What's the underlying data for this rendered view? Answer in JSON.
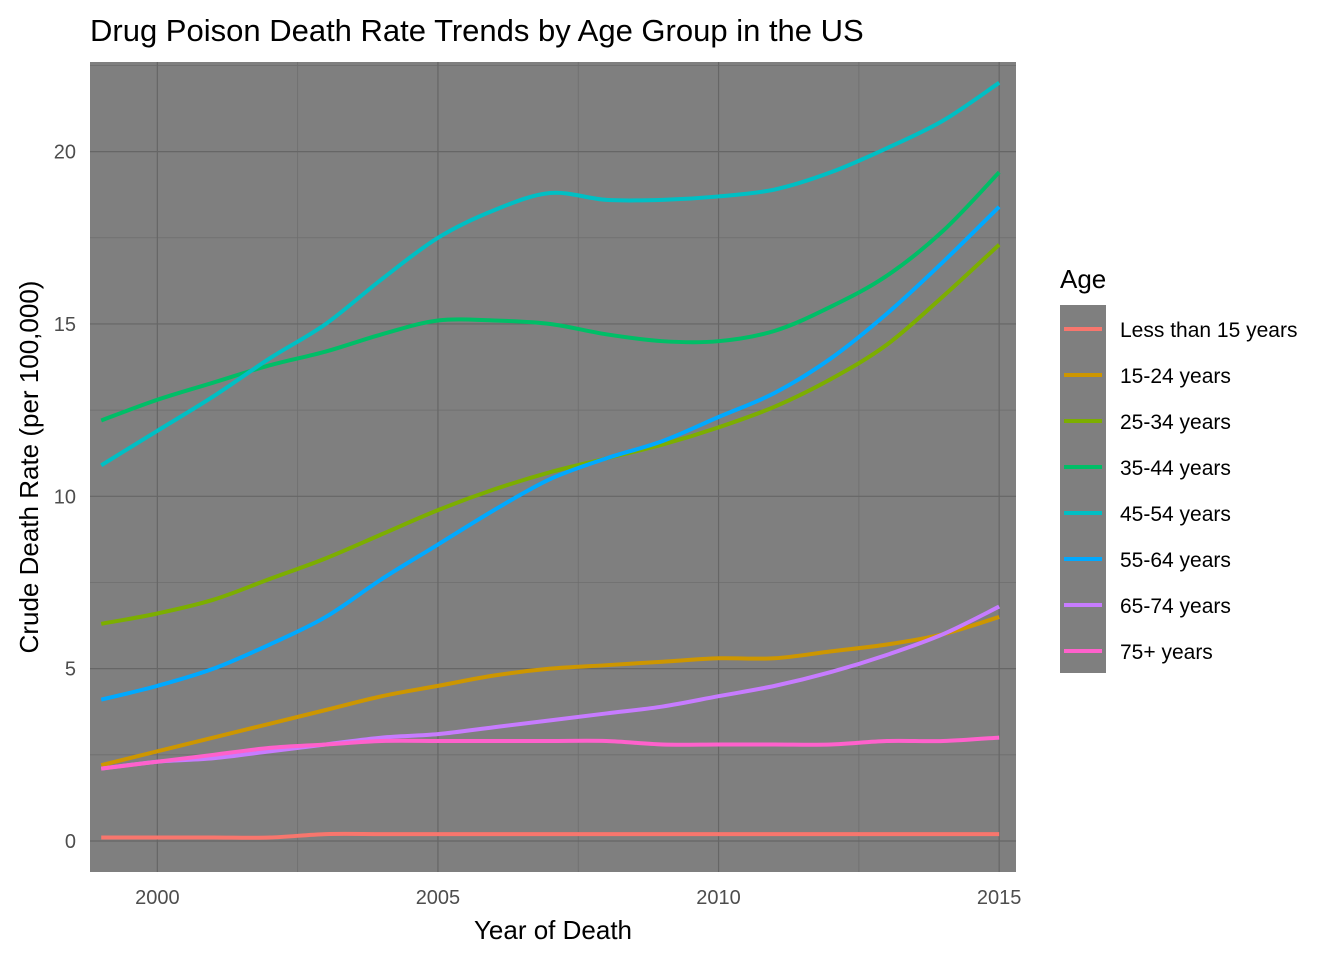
{
  "chart_data": {
    "type": "line",
    "title": "Drug Poison Death Rate Trends by Age Group in the US",
    "xlabel": "Year of Death",
    "ylabel": "Crude Death Rate (per 100,000)",
    "xlim": [
      1998.8,
      2015.3
    ],
    "ylim": [
      -0.9,
      22.6
    ],
    "x_ticks": [
      2000,
      2005,
      2010,
      2015
    ],
    "y_ticks": [
      0,
      5,
      10,
      15,
      20
    ],
    "x_tick_labels": [
      "2000",
      "2005",
      "2010",
      "2015"
    ],
    "y_tick_labels": [
      "0",
      "5",
      "10",
      "15",
      "20"
    ],
    "grid": true,
    "background": "#7f7f7f",
    "legend": {
      "title": "Age",
      "position": "right"
    },
    "x": [
      1999,
      2000,
      2001,
      2002,
      2003,
      2004,
      2005,
      2006,
      2007,
      2008,
      2009,
      2010,
      2011,
      2012,
      2013,
      2014,
      2015
    ],
    "series": [
      {
        "name": "Less than 15 years",
        "color": "#f8766d",
        "values": [
          0.1,
          0.1,
          0.1,
          0.1,
          0.2,
          0.2,
          0.2,
          0.2,
          0.2,
          0.2,
          0.2,
          0.2,
          0.2,
          0.2,
          0.2,
          0.2,
          0.2
        ]
      },
      {
        "name": "15-24 years",
        "color": "#cd9600",
        "values": [
          2.2,
          2.6,
          3.0,
          3.4,
          3.8,
          4.2,
          4.5,
          4.8,
          5.0,
          5.1,
          5.2,
          5.3,
          5.3,
          5.5,
          5.7,
          6.0,
          6.5
        ]
      },
      {
        "name": "25-34 years",
        "color": "#7cae00",
        "values": [
          6.3,
          6.6,
          7.0,
          7.6,
          8.2,
          8.9,
          9.6,
          10.2,
          10.7,
          11.1,
          11.5,
          12.0,
          12.6,
          13.4,
          14.4,
          15.8,
          17.3
        ]
      },
      {
        "name": "35-44 years",
        "color": "#00be67",
        "values": [
          12.2,
          12.8,
          13.3,
          13.8,
          14.2,
          14.7,
          15.1,
          15.1,
          15.0,
          14.7,
          14.5,
          14.5,
          14.8,
          15.5,
          16.4,
          17.7,
          19.4
        ]
      },
      {
        "name": "45-54 years",
        "color": "#00bfc4",
        "values": [
          10.9,
          11.9,
          12.9,
          14.0,
          15.0,
          16.3,
          17.5,
          18.3,
          18.8,
          18.6,
          18.6,
          18.7,
          18.9,
          19.4,
          20.1,
          20.9,
          22.0
        ]
      },
      {
        "name": "55-64 years",
        "color": "#00a9ff",
        "values": [
          4.1,
          4.5,
          5.0,
          5.7,
          6.5,
          7.6,
          8.6,
          9.6,
          10.5,
          11.1,
          11.6,
          12.3,
          13.0,
          14.0,
          15.3,
          16.8,
          18.4
        ]
      },
      {
        "name": "65-74 years",
        "color": "#c77cff",
        "values": [
          2.1,
          2.3,
          2.4,
          2.6,
          2.8,
          3.0,
          3.1,
          3.3,
          3.5,
          3.7,
          3.9,
          4.2,
          4.5,
          4.9,
          5.4,
          6.0,
          6.8
        ]
      },
      {
        "name": "75+ years",
        "color": "#ff61cc",
        "values": [
          2.1,
          2.3,
          2.5,
          2.7,
          2.8,
          2.9,
          2.9,
          2.9,
          2.9,
          2.9,
          2.8,
          2.8,
          2.8,
          2.8,
          2.9,
          2.9,
          3.0
        ]
      }
    ]
  }
}
